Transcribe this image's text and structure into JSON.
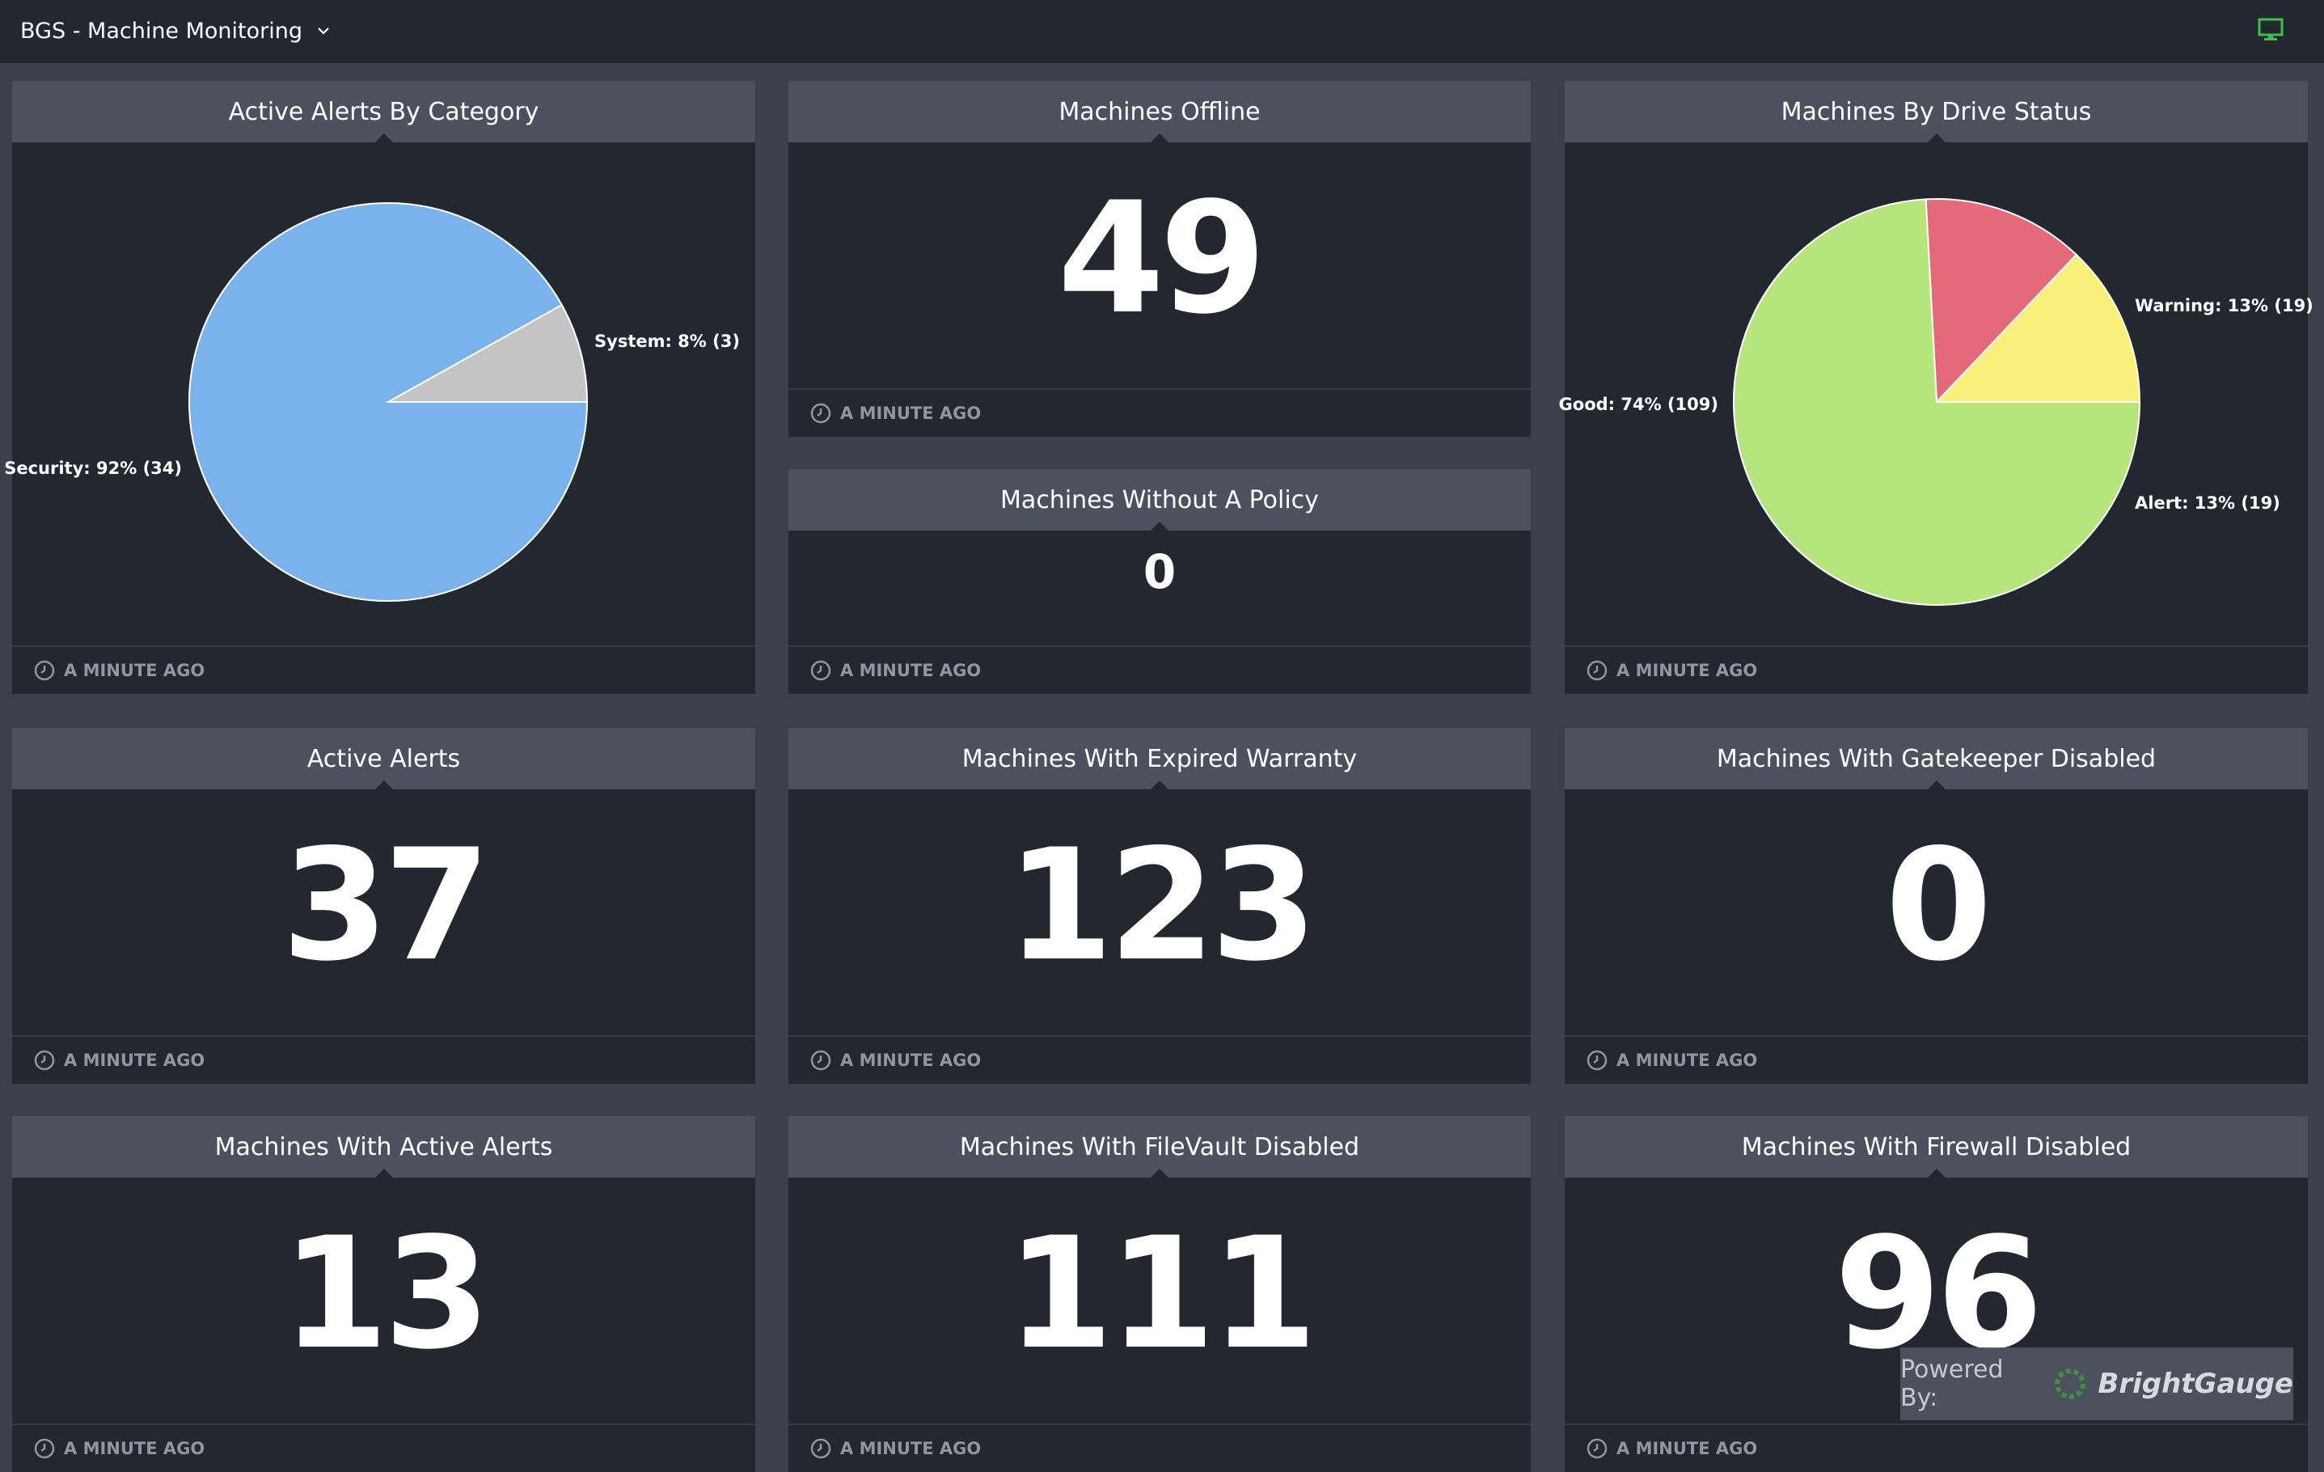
{
  "header": {
    "title": "BGS - Machine Monitoring",
    "dropdown_icon": "chevron-down-icon",
    "monitor_icon": "monitor-icon",
    "monitor_icon_color": "#3cbf4a"
  },
  "widgets": [
    {
      "title": "Active Alerts By Category",
      "updated": "A MINUTE AGO",
      "type": "pie"
    },
    {
      "title": "Machines Offline",
      "value": "49",
      "updated": "A MINUTE AGO"
    },
    {
      "title": "Machines By Drive Status",
      "updated": "A MINUTE AGO",
      "type": "pie"
    },
    {
      "title": "Machines Without A Policy",
      "value": "0",
      "updated": "A MINUTE AGO"
    },
    {
      "title": "Active Alerts",
      "value": "37",
      "updated": "A MINUTE AGO"
    },
    {
      "title": "Machines With Expired Warranty",
      "value": "123",
      "updated": "A MINUTE AGO"
    },
    {
      "title": "Machines With Gatekeeper Disabled",
      "value": "0",
      "updated": "A MINUTE AGO"
    },
    {
      "title": "Machines With Active Alerts",
      "value": "13",
      "updated": "A MINUTE AGO"
    },
    {
      "title": "Machines With FileVault Disabled",
      "value": "111",
      "updated": "A MINUTE AGO"
    },
    {
      "title": "Machines With Firewall Disabled",
      "value": "96",
      "updated": "A MINUTE AGO"
    }
  ],
  "chart_data": [
    {
      "type": "pie",
      "title": "Active Alerts By Category",
      "categories": [
        "Security",
        "System"
      ],
      "values": [
        34,
        3
      ],
      "labels": [
        "Security: 92% (34)",
        "System: 8% (3)"
      ],
      "colors": [
        "#7ab3eb",
        "#c4c4c4"
      ]
    },
    {
      "type": "pie",
      "title": "Machines By Drive Status",
      "categories": [
        "Good",
        "Warning",
        "Alert"
      ],
      "values": [
        109,
        19,
        19
      ],
      "labels": [
        "Good: 74% (109)",
        "Warning: 13% (19)",
        "Alert: 13% (19)"
      ],
      "colors": [
        "#b5e57c",
        "#e36a78",
        "#f9f07c"
      ]
    }
  ],
  "watermark": {
    "prefix": "Powered By:",
    "brand": "BrightGauge",
    "logo_icon": "brightgauge-logo-icon"
  }
}
